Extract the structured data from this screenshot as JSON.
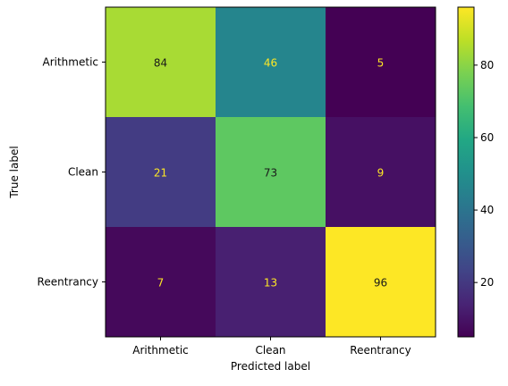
{
  "chart_data": {
    "type": "heatmap",
    "x_labels": [
      "Arithmetic",
      "Clean",
      "Reentrancy"
    ],
    "y_labels": [
      "Arithmetic",
      "Clean",
      "Reentrancy"
    ],
    "values": [
      [
        84,
        46,
        5
      ],
      [
        21,
        73,
        9
      ],
      [
        7,
        13,
        96
      ]
    ],
    "xlabel": "Predicted label",
    "ylabel": "True label",
    "colormap": "viridis",
    "colorbar": {
      "vmin": 5,
      "vmax": 96,
      "ticks": [
        20,
        40,
        60,
        80
      ]
    },
    "text_colors": {
      "light": "#fde725",
      "dark": "#1a1a1a"
    }
  }
}
